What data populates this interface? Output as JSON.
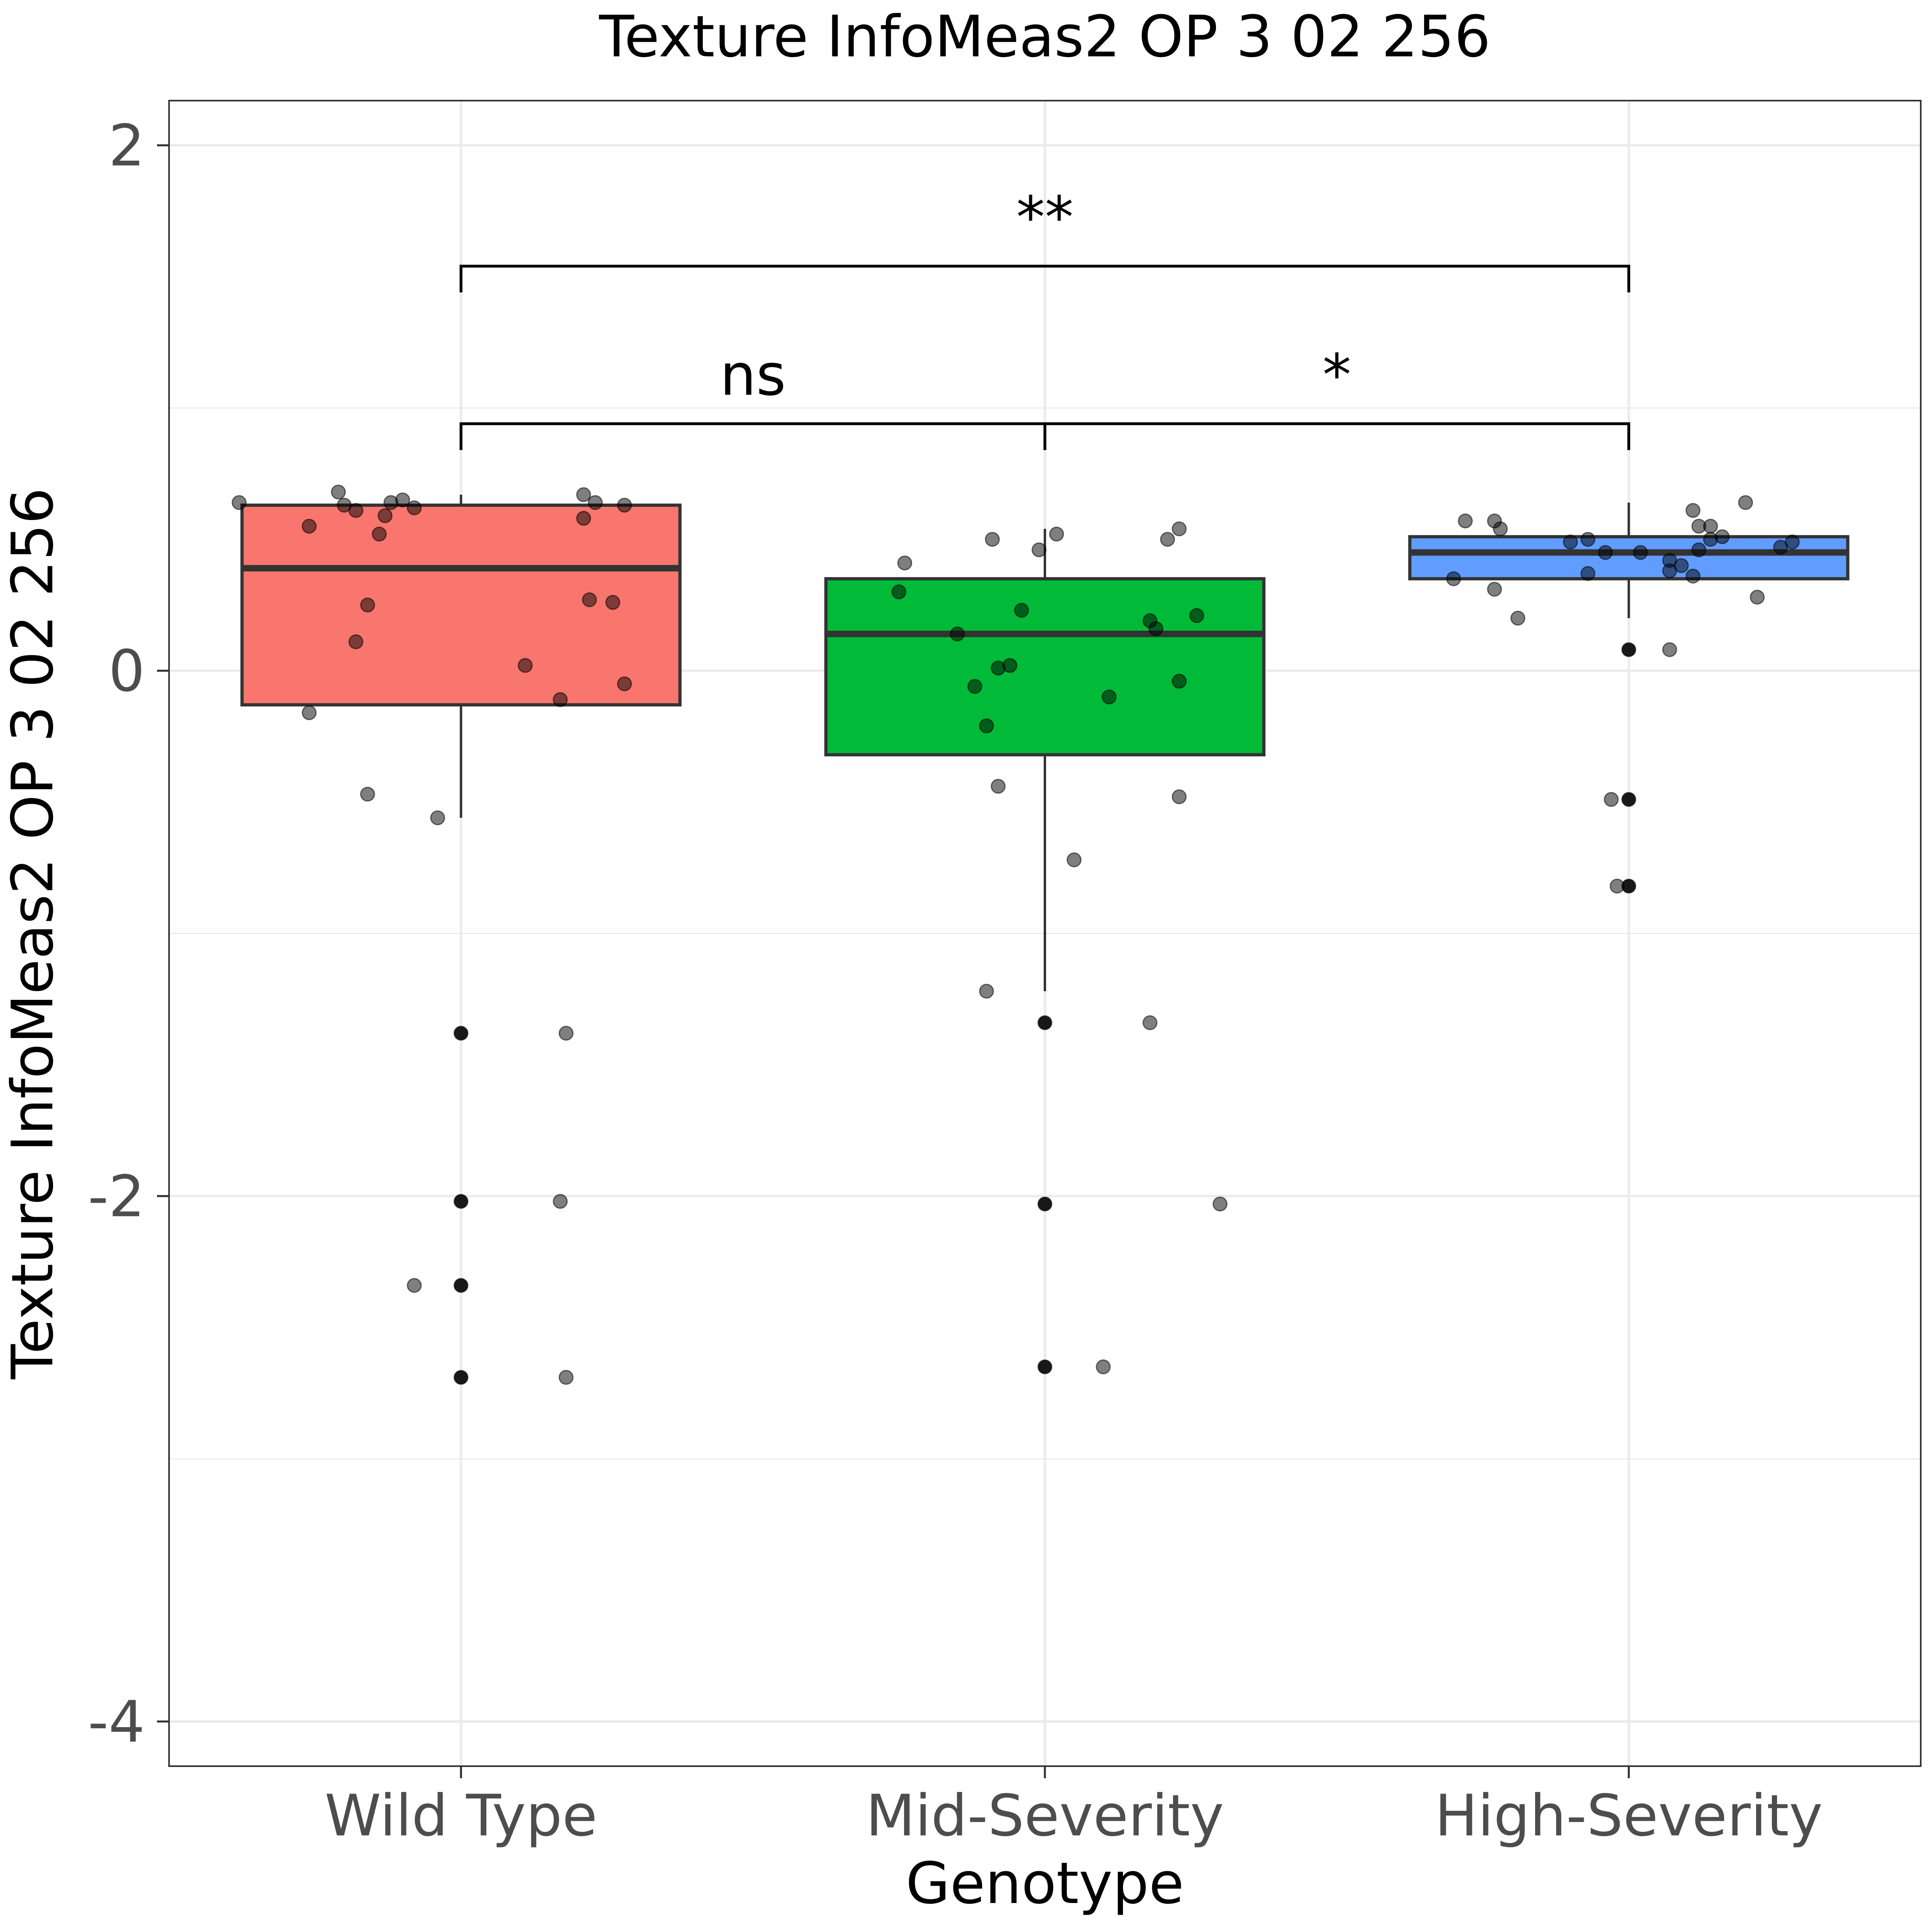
{
  "chart_data": {
    "type": "box",
    "title": "Texture InfoMeas2 OP 3 02 256",
    "xlabel": "Genotype",
    "ylabel": "Texture InfoMeas2 OP 3 02 256",
    "ylim": [
      -4.17,
      2.17
    ],
    "yticks": [
      2,
      0,
      -2,
      -4
    ],
    "ytick_labels": [
      "2",
      "0",
      "-2",
      "-4"
    ],
    "grid": true,
    "legend": "none",
    "categories": [
      "Wild Type",
      "Mid-Severity",
      "High-Severity"
    ],
    "boxes": [
      {
        "name": "Wild Type",
        "color": "#F8766D",
        "q1": -0.13,
        "median": 0.39,
        "q3": 0.63,
        "whisker_low": -0.56,
        "whisker_high": 0.67,
        "outliers": [
          -1.38,
          -2.02,
          -2.34,
          -2.69
        ],
        "points": [
          {
            "dx": -0.38,
            "y": 0.64
          },
          {
            "dx": -0.21,
            "y": 0.68
          },
          {
            "dx": -0.2,
            "y": 0.63
          },
          {
            "dx": -0.18,
            "y": 0.61
          },
          {
            "dx": -0.13,
            "y": 0.59
          },
          {
            "dx": -0.12,
            "y": 0.64
          },
          {
            "dx": -0.1,
            "y": 0.65
          },
          {
            "dx": -0.08,
            "y": 0.62
          },
          {
            "dx": 0.21,
            "y": 0.67
          },
          {
            "dx": 0.23,
            "y": 0.64
          },
          {
            "dx": 0.28,
            "y": 0.63
          },
          {
            "dx": -0.26,
            "y": 0.55
          },
          {
            "dx": -0.14,
            "y": 0.52
          },
          {
            "dx": 0.21,
            "y": 0.58
          },
          {
            "dx": -0.16,
            "y": 0.25
          },
          {
            "dx": 0.22,
            "y": 0.27
          },
          {
            "dx": 0.26,
            "y": 0.26
          },
          {
            "dx": -0.18,
            "y": 0.11
          },
          {
            "dx": 0.11,
            "y": 0.02
          },
          {
            "dx": 0.17,
            "y": -0.11
          },
          {
            "dx": 0.28,
            "y": -0.05
          },
          {
            "dx": -0.26,
            "y": -0.16
          },
          {
            "dx": -0.16,
            "y": -0.47
          },
          {
            "dx": -0.04,
            "y": -0.56
          },
          {
            "dx": 0.0,
            "y": -1.38
          },
          {
            "dx": 0.18,
            "y": -1.38
          },
          {
            "dx": 0.0,
            "y": -2.02
          },
          {
            "dx": 0.17,
            "y": -2.02
          },
          {
            "dx": -0.08,
            "y": -2.34
          },
          {
            "dx": 0.0,
            "y": -2.34
          },
          {
            "dx": 0.0,
            "y": -2.69
          },
          {
            "dx": 0.18,
            "y": -2.69
          }
        ]
      },
      {
        "name": "Mid-Severity",
        "color": "#00BA38",
        "q1": -0.32,
        "median": 0.14,
        "q3": 0.35,
        "whisker_low": -1.22,
        "whisker_high": 0.54,
        "outliers": [
          -1.34,
          -2.03,
          -2.65
        ],
        "points": [
          {
            "dx": -0.24,
            "y": 0.41
          },
          {
            "dx": -0.09,
            "y": 0.5
          },
          {
            "dx": -0.01,
            "y": 0.46
          },
          {
            "dx": 0.02,
            "y": 0.52
          },
          {
            "dx": 0.21,
            "y": 0.5
          },
          {
            "dx": 0.23,
            "y": 0.54
          },
          {
            "dx": -0.25,
            "y": 0.3
          },
          {
            "dx": -0.04,
            "y": 0.23
          },
          {
            "dx": 0.18,
            "y": 0.19
          },
          {
            "dx": 0.26,
            "y": 0.21
          },
          {
            "dx": -0.15,
            "y": 0.14
          },
          {
            "dx": 0.19,
            "y": 0.16
          },
          {
            "dx": -0.08,
            "y": 0.01
          },
          {
            "dx": -0.06,
            "y": 0.02
          },
          {
            "dx": -0.12,
            "y": -0.06
          },
          {
            "dx": 0.11,
            "y": -0.1
          },
          {
            "dx": 0.23,
            "y": -0.04
          },
          {
            "dx": -0.1,
            "y": -0.21
          },
          {
            "dx": -0.08,
            "y": -0.44
          },
          {
            "dx": 0.23,
            "y": -0.48
          },
          {
            "dx": 0.05,
            "y": -0.72
          },
          {
            "dx": -0.1,
            "y": -1.22
          },
          {
            "dx": 0.0,
            "y": -1.34
          },
          {
            "dx": 0.18,
            "y": -1.34
          },
          {
            "dx": 0.0,
            "y": -2.03
          },
          {
            "dx": 0.3,
            "y": -2.03
          },
          {
            "dx": 0.0,
            "y": -2.65
          },
          {
            "dx": 0.1,
            "y": -2.65
          }
        ]
      },
      {
        "name": "High-Severity",
        "color": "#619CFF",
        "q1": 0.35,
        "median": 0.45,
        "q3": 0.51,
        "whisker_low": 0.2,
        "whisker_high": 0.64,
        "outliers": [
          0.08,
          -0.49,
          -0.82
        ],
        "points": [
          {
            "dx": -0.28,
            "y": 0.57
          },
          {
            "dx": -0.23,
            "y": 0.57
          },
          {
            "dx": -0.22,
            "y": 0.54
          },
          {
            "dx": 0.11,
            "y": 0.61
          },
          {
            "dx": 0.12,
            "y": 0.55
          },
          {
            "dx": 0.14,
            "y": 0.55
          },
          {
            "dx": 0.2,
            "y": 0.64
          },
          {
            "dx": -0.1,
            "y": 0.49
          },
          {
            "dx": -0.07,
            "y": 0.5
          },
          {
            "dx": -0.04,
            "y": 0.45
          },
          {
            "dx": 0.02,
            "y": 0.45
          },
          {
            "dx": 0.12,
            "y": 0.46
          },
          {
            "dx": 0.14,
            "y": 0.5
          },
          {
            "dx": 0.16,
            "y": 0.51
          },
          {
            "dx": 0.26,
            "y": 0.47
          },
          {
            "dx": 0.28,
            "y": 0.49
          },
          {
            "dx": 0.07,
            "y": 0.42
          },
          {
            "dx": 0.09,
            "y": 0.4
          },
          {
            "dx": -0.07,
            "y": 0.37
          },
          {
            "dx": 0.07,
            "y": 0.38
          },
          {
            "dx": 0.11,
            "y": 0.36
          },
          {
            "dx": -0.3,
            "y": 0.35
          },
          {
            "dx": -0.23,
            "y": 0.31
          },
          {
            "dx": 0.22,
            "y": 0.28
          },
          {
            "dx": -0.19,
            "y": 0.2
          },
          {
            "dx": 0.0,
            "y": 0.08
          },
          {
            "dx": 0.07,
            "y": 0.08
          },
          {
            "dx": -0.03,
            "y": -0.49
          },
          {
            "dx": 0.0,
            "y": -0.49
          },
          {
            "dx": -0.02,
            "y": -0.82
          },
          {
            "dx": 0.0,
            "y": -0.82
          }
        ]
      }
    ],
    "comparisons": [
      {
        "from": 0,
        "to": 2,
        "y": 1.54,
        "tip": 0.1,
        "label": "**"
      },
      {
        "from": 0,
        "to": 1,
        "y": 0.94,
        "tip": 0.1,
        "label": "ns"
      },
      {
        "from": 1,
        "to": 2,
        "y": 0.94,
        "tip": 0.1,
        "label": "*"
      }
    ]
  }
}
